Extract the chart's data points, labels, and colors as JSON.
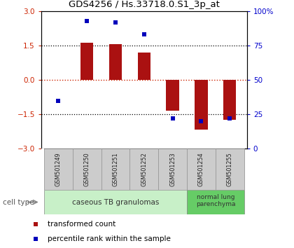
{
  "title": "GDS4256 / Hs.33718.0.S1_3p_at",
  "samples": [
    "GSM501249",
    "GSM501250",
    "GSM501251",
    "GSM501252",
    "GSM501253",
    "GSM501254",
    "GSM501255"
  ],
  "transformed_count": [
    0.02,
    1.62,
    1.55,
    1.2,
    -1.35,
    -2.15,
    -1.75
  ],
  "percentile_rank": [
    35,
    93,
    92,
    83,
    22,
    20,
    22
  ],
  "ylim": [
    -3,
    3
  ],
  "yticks_left": [
    -3,
    -1.5,
    0,
    1.5,
    3
  ],
  "yticks_right_vals": [
    0,
    25,
    50,
    75,
    100
  ],
  "yticks_right_labels": [
    "0",
    "25",
    "50",
    "75",
    "100%"
  ],
  "hlines_dotted": [
    -1.5,
    1.5
  ],
  "bar_color": "#aa1111",
  "dot_color": "#0000bb",
  "bar_width": 0.45,
  "legend_labels": [
    "transformed count",
    "percentile rank within the sample"
  ],
  "left_tick_color": "#cc2200",
  "right_tick_color": "#0000cc",
  "background_color": "#ffffff",
  "cell_type_label": "cell type",
  "cell_type_groups": [
    {
      "label": "caseous TB granulomas",
      "start": 0,
      "end": 5,
      "color": "#c8f0c8"
    },
    {
      "label": "normal lung\nparenchyma",
      "start": 5,
      "end": 7,
      "color": "#66cc66"
    }
  ],
  "sample_box_color": "#cccccc",
  "sample_box_edge": "#999999"
}
